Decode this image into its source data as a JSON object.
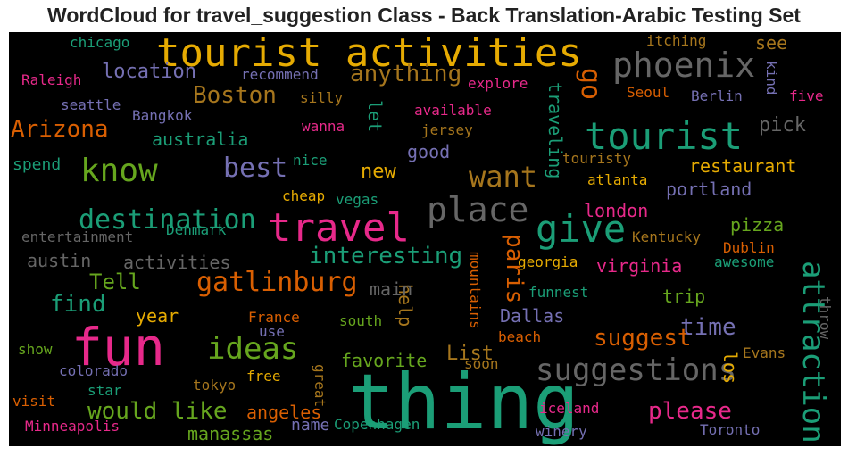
{
  "title": "WordCloud for travel_suggestion Class - Back Translation-Arabic Testing Set",
  "chart_data": {
    "type": "wordcloud",
    "title": "WordCloud for travel_suggestion Class - Back Translation-Arabic Testing Set",
    "background": "#000000",
    "colormap": "Dark2",
    "words": [
      {
        "text": "thing",
        "weight": 1.0,
        "color": "#1b9e77"
      },
      {
        "text": "fun",
        "weight": 0.78,
        "color": "#e7298a"
      },
      {
        "text": "tourist activities",
        "weight": 0.62,
        "color": "#e6ab02"
      },
      {
        "text": "travel",
        "weight": 0.58,
        "color": "#e7298a"
      },
      {
        "text": "attractions",
        "weight": 0.52,
        "color": "#1b9e77"
      },
      {
        "text": "tourist",
        "weight": 0.6,
        "color": "#1b9e77"
      },
      {
        "text": "give",
        "weight": 0.58,
        "color": "#1b9e77"
      },
      {
        "text": "phoenix",
        "weight": 0.52,
        "color": "#666666"
      },
      {
        "text": "place",
        "weight": 0.5,
        "color": "#666666"
      },
      {
        "text": "know",
        "weight": 0.5,
        "color": "#66a61e"
      },
      {
        "text": "suggestions",
        "weight": 0.46,
        "color": "#666666"
      },
      {
        "text": "ideas",
        "weight": 0.45,
        "color": "#66a61e"
      },
      {
        "text": "gatlinburg",
        "weight": 0.42,
        "color": "#d95f02"
      },
      {
        "text": "destination",
        "weight": 0.42,
        "color": "#1b9e77"
      },
      {
        "text": "best",
        "weight": 0.42,
        "color": "#7570b3"
      },
      {
        "text": "want",
        "weight": 0.42,
        "color": "#a6761d"
      },
      {
        "text": "Arizona",
        "weight": 0.38,
        "color": "#d95f02"
      },
      {
        "text": "anything",
        "weight": 0.38,
        "color": "#a6761d"
      },
      {
        "text": "Boston",
        "weight": 0.36,
        "color": "#a6761d"
      },
      {
        "text": "go",
        "weight": 0.4,
        "color": "#d95f02"
      },
      {
        "text": "interesting",
        "weight": 0.36,
        "color": "#1b9e77"
      },
      {
        "text": "paris",
        "weight": 0.36,
        "color": "#d95f02"
      },
      {
        "text": "please",
        "weight": 0.36,
        "color": "#e7298a"
      },
      {
        "text": "suggest",
        "weight": 0.36,
        "color": "#d95f02"
      },
      {
        "text": "would like",
        "weight": 0.34,
        "color": "#66a61e"
      },
      {
        "text": "find",
        "weight": 0.34,
        "color": "#1b9e77"
      },
      {
        "text": "Tell",
        "weight": 0.34,
        "color": "#66a61e"
      },
      {
        "text": "time",
        "weight": 0.34,
        "color": "#7570b3"
      },
      {
        "text": "List",
        "weight": 0.3,
        "color": "#a6761d"
      },
      {
        "text": "new",
        "weight": 0.3,
        "color": "#e6ab02"
      },
      {
        "text": "location",
        "weight": 0.28,
        "color": "#7570b3"
      },
      {
        "text": "restaurant",
        "weight": 0.28,
        "color": "#e6ab02"
      },
      {
        "text": "portland",
        "weight": 0.28,
        "color": "#7570b3"
      },
      {
        "text": "pick",
        "weight": 0.28,
        "color": "#666666"
      },
      {
        "text": "australia",
        "weight": 0.28,
        "color": "#1b9e77"
      },
      {
        "text": "virginia",
        "weight": 0.28,
        "color": "#e7298a"
      },
      {
        "text": "austin",
        "weight": 0.28,
        "color": "#666666"
      },
      {
        "text": "activities",
        "weight": 0.28,
        "color": "#666666"
      },
      {
        "text": "year",
        "weight": 0.28,
        "color": "#e6ab02"
      },
      {
        "text": "Dallas",
        "weight": 0.28,
        "color": "#7570b3"
      },
      {
        "text": "favorite",
        "weight": 0.28,
        "color": "#66a61e"
      },
      {
        "text": "manassas",
        "weight": 0.28,
        "color": "#66a61e"
      },
      {
        "text": "angeles",
        "weight": 0.28,
        "color": "#d95f02"
      },
      {
        "text": "trip",
        "weight": 0.28,
        "color": "#66a61e"
      },
      {
        "text": "traveling",
        "weight": 0.28,
        "color": "#1b9e77"
      },
      {
        "text": "let",
        "weight": 0.28,
        "color": "#1b9e77"
      },
      {
        "text": "help",
        "weight": 0.28,
        "color": "#a6761d"
      },
      {
        "text": "los",
        "weight": 0.26,
        "color": "#e6ab02"
      },
      {
        "text": "main",
        "weight": 0.26,
        "color": "#666666"
      },
      {
        "text": "good",
        "weight": 0.26,
        "color": "#7570b3"
      },
      {
        "text": "pizza",
        "weight": 0.26,
        "color": "#66a61e"
      },
      {
        "text": "london",
        "weight": 0.26,
        "color": "#e7298a"
      },
      {
        "text": "see",
        "weight": 0.26,
        "color": "#a6761d"
      },
      {
        "text": "spend",
        "weight": 0.26,
        "color": "#1b9e77"
      },
      {
        "text": "name",
        "weight": 0.26,
        "color": "#7570b3"
      },
      {
        "text": "kind",
        "weight": 0.22,
        "color": "#7570b3"
      },
      {
        "text": "Seoul",
        "weight": 0.22,
        "color": "#d95f02"
      },
      {
        "text": "Berlin",
        "weight": 0.22,
        "color": "#7570b3"
      },
      {
        "text": "five",
        "weight": 0.22,
        "color": "#e7298a"
      },
      {
        "text": "chicago",
        "weight": 0.2,
        "color": "#1b9e77"
      },
      {
        "text": "itching",
        "weight": 0.2,
        "color": "#a6761d"
      },
      {
        "text": "recommend",
        "weight": 0.2,
        "color": "#7570b3"
      },
      {
        "text": "Raleigh",
        "weight": 0.2,
        "color": "#e7298a"
      },
      {
        "text": "explore",
        "weight": 0.2,
        "color": "#e7298a"
      },
      {
        "text": "silly",
        "weight": 0.2,
        "color": "#a6761d"
      },
      {
        "text": "seattle",
        "weight": 0.2,
        "color": "#7570b3"
      },
      {
        "text": "Bangkok",
        "weight": 0.2,
        "color": "#7570b3"
      },
      {
        "text": "available",
        "weight": 0.2,
        "color": "#e7298a"
      },
      {
        "text": "wanna",
        "weight": 0.2,
        "color": "#e7298a"
      },
      {
        "text": "jersey",
        "weight": 0.2,
        "color": "#a6761d"
      },
      {
        "text": "nice",
        "weight": 0.2,
        "color": "#1b9e77"
      },
      {
        "text": "touristy",
        "weight": 0.2,
        "color": "#a6761d"
      },
      {
        "text": "atlanta",
        "weight": 0.2,
        "color": "#e6ab02"
      },
      {
        "text": "cheap",
        "weight": 0.2,
        "color": "#e6ab02"
      },
      {
        "text": "vegas",
        "weight": 0.2,
        "color": "#1b9e77"
      },
      {
        "text": "entertainment",
        "weight": 0.2,
        "color": "#666666"
      },
      {
        "text": "Denmark",
        "weight": 0.2,
        "color": "#1b9e77"
      },
      {
        "text": "Kentucky",
        "weight": 0.2,
        "color": "#a6761d"
      },
      {
        "text": "Dublin",
        "weight": 0.2,
        "color": "#d95f02"
      },
      {
        "text": "awesome",
        "weight": 0.2,
        "color": "#1b9e77"
      },
      {
        "text": "georgia",
        "weight": 0.2,
        "color": "#e6ab02"
      },
      {
        "text": "funnest",
        "weight": 0.2,
        "color": "#1b9e77"
      },
      {
        "text": "mountains",
        "weight": 0.2,
        "color": "#d95f02"
      },
      {
        "text": "France",
        "weight": 0.2,
        "color": "#d95f02"
      },
      {
        "text": "use",
        "weight": 0.2,
        "color": "#7570b3"
      },
      {
        "text": "south",
        "weight": 0.2,
        "color": "#66a61e"
      },
      {
        "text": "beach",
        "weight": 0.2,
        "color": "#d95f02"
      },
      {
        "text": "show",
        "weight": 0.2,
        "color": "#66a61e"
      },
      {
        "text": "colorado",
        "weight": 0.2,
        "color": "#7570b3"
      },
      {
        "text": "tokyo",
        "weight": 0.2,
        "color": "#a6761d"
      },
      {
        "text": "free",
        "weight": 0.2,
        "color": "#e6ab02"
      },
      {
        "text": "great",
        "weight": 0.2,
        "color": "#a6761d"
      },
      {
        "text": "soon",
        "weight": 0.2,
        "color": "#a6761d"
      },
      {
        "text": "Evans",
        "weight": 0.2,
        "color": "#a6761d"
      },
      {
        "text": "throw",
        "weight": 0.2,
        "color": "#666666"
      },
      {
        "text": "visit",
        "weight": 0.2,
        "color": "#d95f02"
      },
      {
        "text": "star",
        "weight": 0.2,
        "color": "#1b9e77"
      },
      {
        "text": "Minneapolis",
        "weight": 0.2,
        "color": "#e7298a"
      },
      {
        "text": "Copenhagen",
        "weight": 0.2,
        "color": "#1b9e77"
      },
      {
        "text": "iceland",
        "weight": 0.2,
        "color": "#e7298a"
      },
      {
        "text": "winery",
        "weight": 0.2,
        "color": "#7570b3"
      },
      {
        "text": "Toronto",
        "weight": 0.2,
        "color": "#7570b3"
      }
    ]
  }
}
